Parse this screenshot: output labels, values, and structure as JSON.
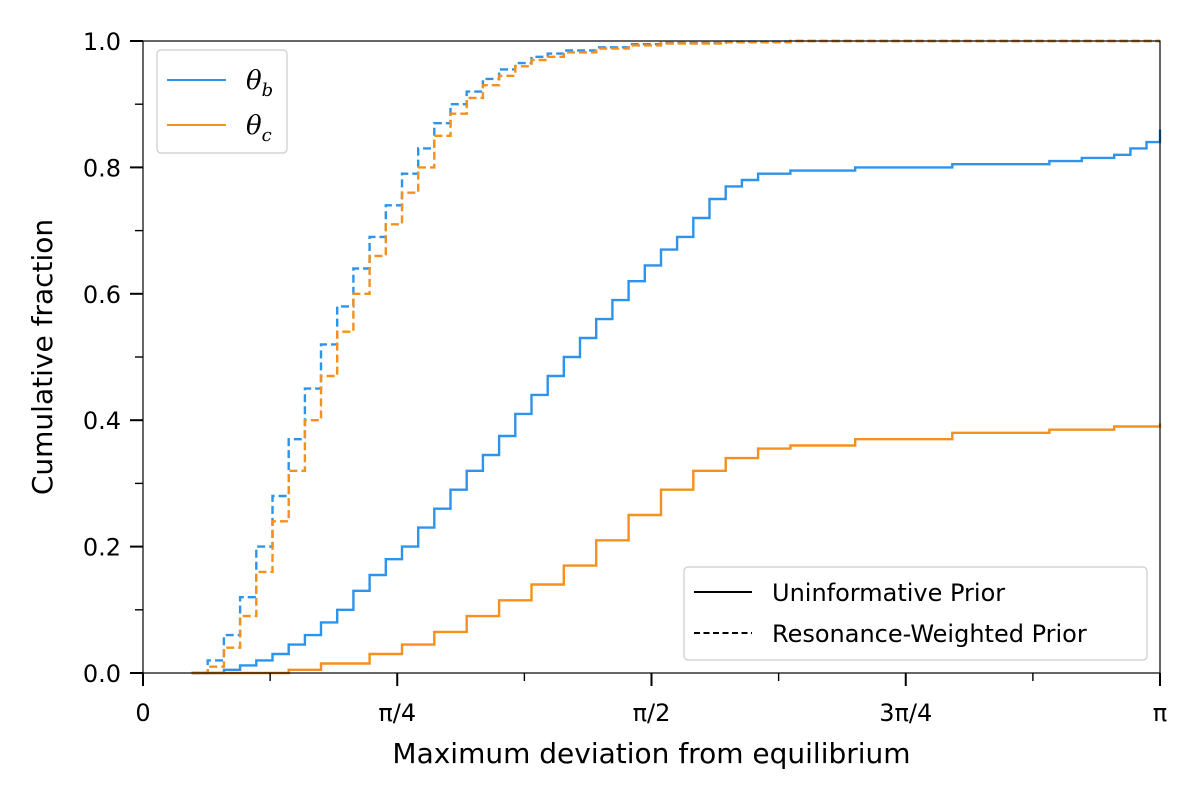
{
  "chart_data": {
    "type": "line",
    "step": true,
    "xlabel": "Maximum deviation from equilibrium",
    "ylabel": "Cumulative fraction",
    "xlim": [
      0,
      3.14159
    ],
    "ylim": [
      0,
      1.0
    ],
    "xticks": [
      {
        "value": 0,
        "label": "0"
      },
      {
        "value": 0.7854,
        "label": "π/4"
      },
      {
        "value": 1.5708,
        "label": "π/2"
      },
      {
        "value": 2.3562,
        "label": "3π/4"
      },
      {
        "value": 3.14159,
        "label": "π"
      }
    ],
    "xminor_ticks": [
      0.3927,
      1.1781,
      1.9635,
      2.7489
    ],
    "yticks": [
      {
        "value": 0.0,
        "label": "0.0"
      },
      {
        "value": 0.2,
        "label": "0.2"
      },
      {
        "value": 0.4,
        "label": "0.4"
      },
      {
        "value": 0.6,
        "label": "0.6"
      },
      {
        "value": 0.8,
        "label": "0.8"
      },
      {
        "value": 1.0,
        "label": "1.0"
      }
    ],
    "yminor_ticks": [
      0.1,
      0.3,
      0.5,
      0.7,
      0.9
    ],
    "grid": false,
    "color_legend": {
      "placement": "top-left",
      "entries": [
        {
          "base": "θ",
          "sub": "b",
          "color": "#2e93ea"
        },
        {
          "base": "θ",
          "sub": "c",
          "color": "#f5901e"
        }
      ]
    },
    "style_legend": {
      "placement": "bottom-right",
      "entries": [
        {
          "label": "Uninformative Prior",
          "dash": "solid"
        },
        {
          "label": "Resonance-Weighted Prior",
          "dash": "dashed"
        }
      ]
    },
    "series": [
      {
        "variable": "θb",
        "prior": "Uninformative Prior",
        "color": "#2e93ea",
        "dash": "solid",
        "x": [
          0.15,
          0.25,
          0.3,
          0.35,
          0.4,
          0.45,
          0.5,
          0.55,
          0.6,
          0.65,
          0.7,
          0.75,
          0.8,
          0.85,
          0.9,
          0.95,
          1.0,
          1.05,
          1.1,
          1.15,
          1.2,
          1.25,
          1.3,
          1.35,
          1.4,
          1.45,
          1.5,
          1.55,
          1.6,
          1.65,
          1.7,
          1.75,
          1.8,
          1.85,
          1.9,
          2.0,
          2.2,
          2.5,
          2.8,
          2.9,
          3.0,
          3.05,
          3.1,
          3.14159
        ],
        "y": [
          0.0,
          0.005,
          0.012,
          0.02,
          0.03,
          0.045,
          0.06,
          0.08,
          0.1,
          0.13,
          0.155,
          0.18,
          0.2,
          0.23,
          0.26,
          0.29,
          0.32,
          0.345,
          0.375,
          0.41,
          0.44,
          0.47,
          0.5,
          0.53,
          0.56,
          0.59,
          0.62,
          0.645,
          0.67,
          0.69,
          0.72,
          0.75,
          0.77,
          0.78,
          0.79,
          0.795,
          0.8,
          0.805,
          0.81,
          0.815,
          0.82,
          0.83,
          0.84,
          0.86
        ]
      },
      {
        "variable": "θc",
        "prior": "Uninformative Prior",
        "color": "#f5901e",
        "dash": "solid",
        "x": [
          0.15,
          0.45,
          0.55,
          0.7,
          0.8,
          0.9,
          1.0,
          1.1,
          1.2,
          1.3,
          1.4,
          1.5,
          1.6,
          1.7,
          1.8,
          1.9,
          2.0,
          2.2,
          2.5,
          2.8,
          3.0,
          3.14159
        ],
        "y": [
          0.0,
          0.005,
          0.015,
          0.03,
          0.045,
          0.065,
          0.09,
          0.115,
          0.14,
          0.17,
          0.21,
          0.25,
          0.29,
          0.32,
          0.34,
          0.355,
          0.36,
          0.37,
          0.38,
          0.385,
          0.39,
          0.395
        ]
      },
      {
        "variable": "θb",
        "prior": "Resonance-Weighted Prior",
        "color": "#2e93ea",
        "dash": "dashed",
        "x": [
          0.15,
          0.2,
          0.25,
          0.3,
          0.35,
          0.4,
          0.45,
          0.5,
          0.55,
          0.6,
          0.65,
          0.7,
          0.75,
          0.8,
          0.85,
          0.9,
          0.95,
          1.0,
          1.05,
          1.1,
          1.15,
          1.2,
          1.25,
          1.3,
          1.4,
          1.5,
          1.6,
          1.8,
          2.0,
          2.5,
          3.14159
        ],
        "y": [
          0.0,
          0.02,
          0.06,
          0.12,
          0.2,
          0.28,
          0.37,
          0.45,
          0.52,
          0.58,
          0.64,
          0.69,
          0.74,
          0.79,
          0.83,
          0.87,
          0.9,
          0.92,
          0.94,
          0.955,
          0.965,
          0.975,
          0.98,
          0.985,
          0.99,
          0.995,
          0.997,
          0.999,
          1.0,
          1.0,
          1.0
        ]
      },
      {
        "variable": "θc",
        "prior": "Resonance-Weighted Prior",
        "color": "#f5901e",
        "dash": "dashed",
        "x": [
          0.15,
          0.2,
          0.25,
          0.3,
          0.35,
          0.4,
          0.45,
          0.5,
          0.55,
          0.6,
          0.65,
          0.7,
          0.75,
          0.8,
          0.85,
          0.9,
          0.95,
          1.0,
          1.05,
          1.1,
          1.15,
          1.2,
          1.25,
          1.3,
          1.4,
          1.5,
          1.6,
          1.8,
          2.0,
          2.5,
          3.14159
        ],
        "y": [
          0.0,
          0.01,
          0.04,
          0.09,
          0.16,
          0.24,
          0.32,
          0.4,
          0.47,
          0.54,
          0.6,
          0.66,
          0.71,
          0.76,
          0.8,
          0.85,
          0.885,
          0.91,
          0.93,
          0.945,
          0.96,
          0.97,
          0.975,
          0.982,
          0.988,
          0.993,
          0.996,
          0.998,
          1.0,
          1.0,
          1.0
        ]
      }
    ]
  }
}
